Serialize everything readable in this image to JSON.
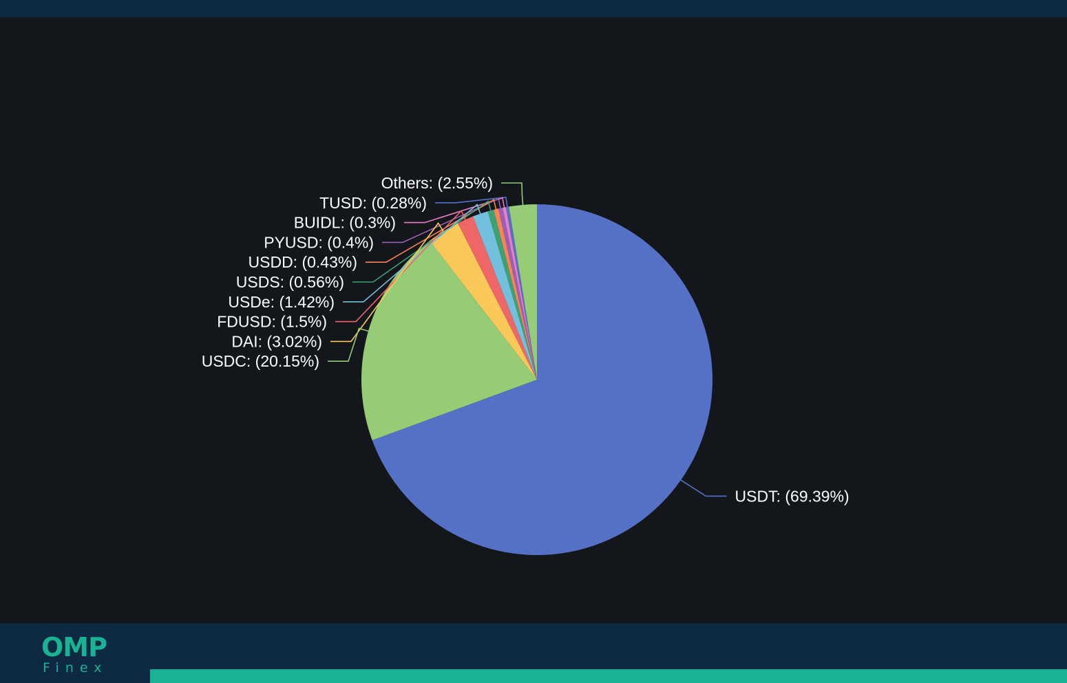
{
  "chart_data": {
    "type": "pie",
    "start_angle_deg": 0,
    "direction": "clockwise",
    "slices": [
      {
        "name": "USDT",
        "label": "USDT: (69.39%)",
        "value": 69.39,
        "color": "#5571c6",
        "side": "right"
      },
      {
        "name": "USDC",
        "label": "USDC: (20.15%)",
        "value": 20.15,
        "color": "#95cc75",
        "side": "left"
      },
      {
        "name": "DAI",
        "label": "DAI: (3.02%)",
        "value": 3.02,
        "color": "#fac858",
        "side": "left"
      },
      {
        "name": "FDUSD",
        "label": "FDUSD: (1.5%)",
        "value": 1.5,
        "color": "#ee6666",
        "side": "left"
      },
      {
        "name": "USDe",
        "label": "USDe: (1.42%)",
        "value": 1.42,
        "color": "#73c0de",
        "side": "left"
      },
      {
        "name": "USDS",
        "label": "USDS: (0.56%)",
        "value": 0.56,
        "color": "#3ba272",
        "side": "left"
      },
      {
        "name": "USDD",
        "label": "USDD: (0.43%)",
        "value": 0.43,
        "color": "#fc8452",
        "side": "left"
      },
      {
        "name": "PYUSD",
        "label": "PYUSD: (0.4%)",
        "value": 0.4,
        "color": "#9a60b4",
        "side": "left"
      },
      {
        "name": "BUIDL",
        "label": "BUIDL: (0.3%)",
        "value": 0.3,
        "color": "#ea7ccc",
        "side": "left"
      },
      {
        "name": "TUSD",
        "label": "TUSD: (0.28%)",
        "value": 0.28,
        "color": "#5571c6",
        "side": "left"
      },
      {
        "name": "Others",
        "label": "Others: (2.55%)",
        "value": 2.55,
        "color": "#95cc75",
        "side": "left"
      }
    ]
  },
  "branding": {
    "logo_mark": "OMP",
    "logo_sub": "Finex",
    "accent_color": "#17b394",
    "bar_color": "#0e2a42",
    "background_color": "#13161a"
  }
}
